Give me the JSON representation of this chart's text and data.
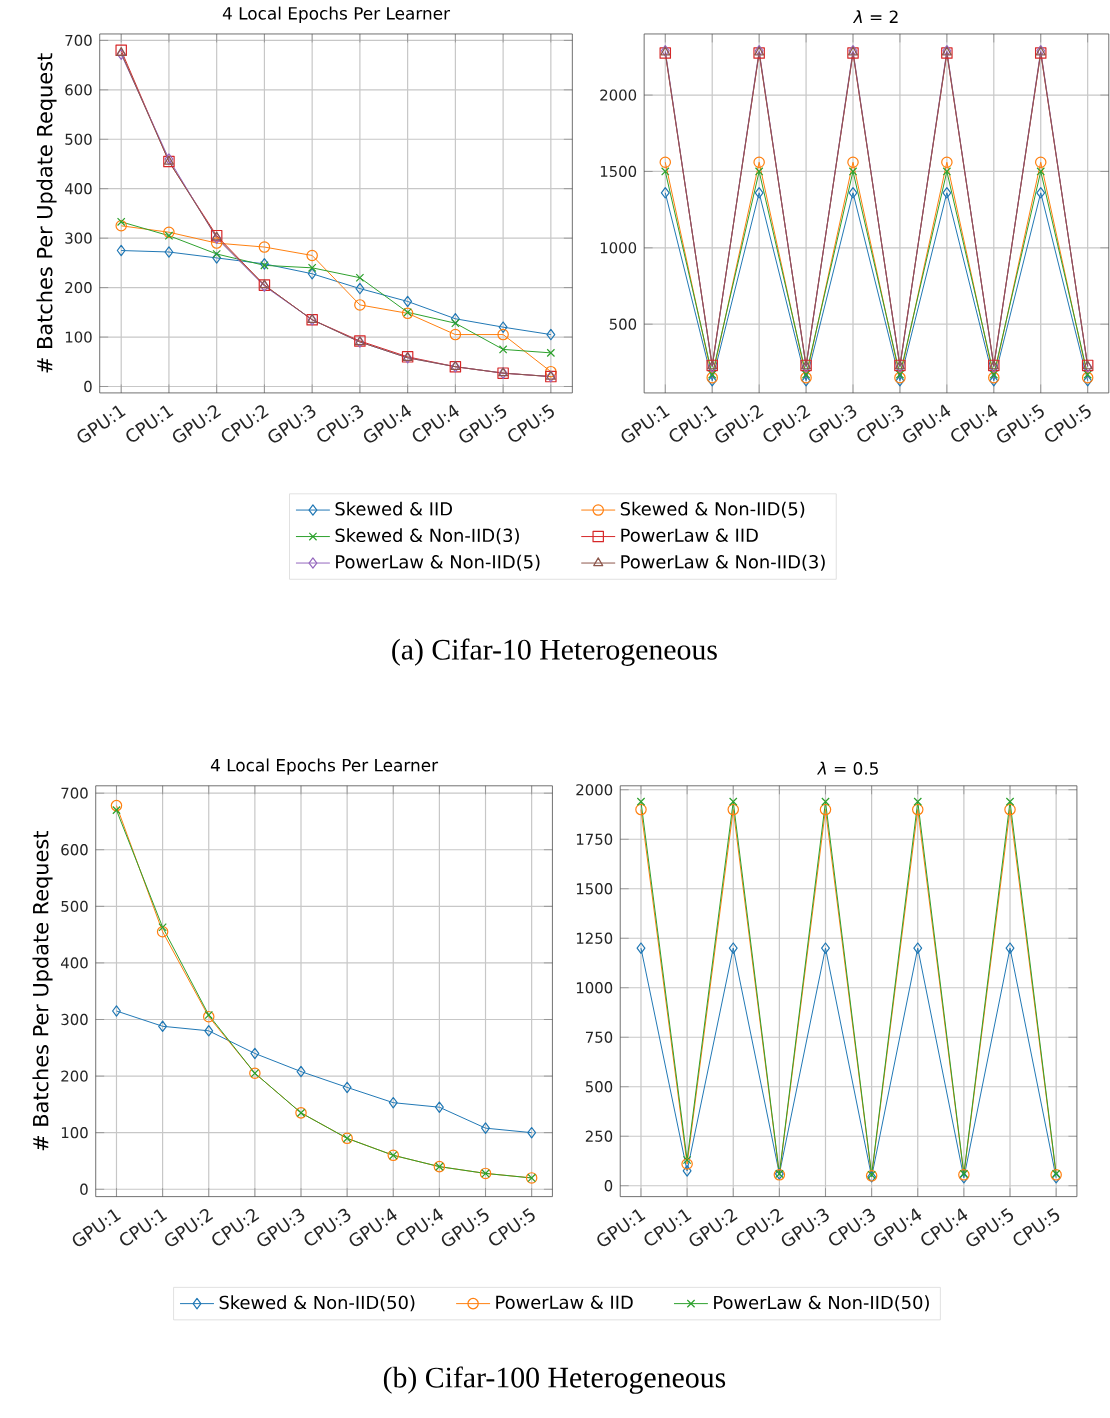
{
  "chart_data": [
    {
      "type": "line",
      "title": "4 Local Epochs Per Learner",
      "ylabel": "# Batches Per Update Request",
      "categories": [
        "GPU:1",
        "CPU:1",
        "GPU:2",
        "CPU:2",
        "GPU:3",
        "CPU:3",
        "GPU:4",
        "CPU:4",
        "GPU:5",
        "CPU:5"
      ],
      "ylim": [
        -13,
        713
      ],
      "yticks": [
        0,
        100,
        200,
        300,
        400,
        500,
        600,
        700
      ],
      "grid": true,
      "legend": "bottom",
      "annotations": [
        "(a) Cifar-10 Heterogeneous"
      ],
      "series": [
        {
          "name": "Skewed & IID",
          "color": "#1f77b4",
          "marker": "diamond",
          "values": [
            275,
            272,
            260,
            248,
            228,
            198,
            172,
            137,
            120,
            105
          ]
        },
        {
          "name": "Skewed & Non-IID(5)",
          "color": "#ff7f0e",
          "marker": "circle",
          "values": [
            325,
            312,
            290,
            282,
            265,
            165,
            148,
            105,
            105,
            30
          ]
        },
        {
          "name": "Skewed & Non-IID(3)",
          "color": "#2ca02c",
          "marker": "cross",
          "values": [
            333,
            305,
            268,
            245,
            240,
            220,
            150,
            128,
            75,
            68
          ]
        },
        {
          "name": "PowerLaw & IID",
          "color": "#d62728",
          "marker": "square",
          "values": [
            680,
            455,
            305,
            205,
            135,
            92,
            60,
            40,
            27,
            20
          ]
        },
        {
          "name": "PowerLaw & Non-IID(5)",
          "color": "#9467bd",
          "marker": "diamond",
          "values": [
            672,
            460,
            300,
            203,
            135,
            90,
            58,
            40,
            27,
            20
          ]
        },
        {
          "name": "PowerLaw & Non-IID(3)",
          "color": "#8c564b",
          "marker": "triangle",
          "values": [
            675,
            455,
            302,
            205,
            135,
            90,
            58,
            40,
            27,
            20
          ]
        }
      ]
    },
    {
      "type": "line",
      "title": "*λ* = 2",
      "categories": [
        "GPU:1",
        "CPU:1",
        "GPU:2",
        "CPU:2",
        "GPU:3",
        "CPU:3",
        "GPU:4",
        "CPU:4",
        "GPU:5",
        "CPU:5"
      ],
      "ylim": [
        50,
        2400
      ],
      "yticks": [
        500,
        1000,
        1500,
        2000
      ],
      "grid": true,
      "series": [
        {
          "color": "#1f77b4",
          "marker": "diamond",
          "values": [
            1360,
            130,
            1360,
            130,
            1360,
            130,
            1360,
            130,
            1360,
            130
          ]
        },
        {
          "color": "#ff7f0e",
          "marker": "circle",
          "values": [
            1560,
            150,
            1560,
            150,
            1560,
            150,
            1560,
            150,
            1560,
            150
          ]
        },
        {
          "color": "#2ca02c",
          "marker": "cross",
          "values": [
            1500,
            170,
            1500,
            170,
            1500,
            170,
            1500,
            170,
            1500,
            170
          ]
        },
        {
          "color": "#d62728",
          "marker": "square",
          "values": [
            2275,
            230,
            2275,
            230,
            2275,
            230,
            2275,
            230,
            2275,
            230
          ]
        },
        {
          "color": "#9467bd",
          "marker": "diamond",
          "values": [
            2290,
            220,
            2290,
            220,
            2290,
            220,
            2290,
            220,
            2290,
            220
          ]
        },
        {
          "color": "#8c564b",
          "marker": "triangle",
          "values": [
            2280,
            225,
            2280,
            225,
            2280,
            225,
            2280,
            225,
            2280,
            225
          ]
        }
      ]
    },
    {
      "type": "line",
      "title": "4 Local Epochs Per Learner",
      "ylabel": "# Batches Per Update Request",
      "categories": [
        "GPU:1",
        "CPU:1",
        "GPU:2",
        "CPU:2",
        "GPU:3",
        "CPU:3",
        "GPU:4",
        "CPU:4",
        "GPU:5",
        "CPU:5"
      ],
      "ylim": [
        -13,
        713
      ],
      "yticks": [
        0,
        100,
        200,
        300,
        400,
        500,
        600,
        700
      ],
      "grid": true,
      "legend": "bottom",
      "annotations": [
        "(b) Cifar-100 Heterogeneous"
      ],
      "series": [
        {
          "name": "Skewed & Non-IID(50)",
          "color": "#1f77b4",
          "marker": "diamond",
          "values": [
            315,
            288,
            280,
            240,
            208,
            180,
            153,
            145,
            108,
            100
          ]
        },
        {
          "name": "PowerLaw & IID",
          "color": "#ff7f0e",
          "marker": "circle",
          "values": [
            678,
            455,
            305,
            205,
            135,
            90,
            60,
            40,
            28,
            20
          ]
        },
        {
          "name": "PowerLaw & Non-IID(50)",
          "color": "#2ca02c",
          "marker": "cross",
          "values": [
            670,
            463,
            308,
            205,
            135,
            90,
            60,
            40,
            28,
            20
          ]
        }
      ]
    },
    {
      "type": "line",
      "title": "*λ* = 0.5",
      "categories": [
        "GPU:1",
        "CPU:1",
        "GPU:2",
        "CPU:2",
        "GPU:3",
        "CPU:3",
        "GPU:4",
        "CPU:4",
        "GPU:5",
        "CPU:5"
      ],
      "ylim": [
        -55,
        2020
      ],
      "yticks": [
        0,
        250,
        500,
        750,
        1000,
        1250,
        1500,
        1750,
        2000
      ],
      "grid": true,
      "series": [
        {
          "color": "#1f77b4",
          "marker": "diamond",
          "values": [
            1200,
            75,
            1200,
            60,
            1200,
            45,
            1200,
            40,
            1200,
            40
          ]
        },
        {
          "color": "#ff7f0e",
          "marker": "circle",
          "values": [
            1900,
            110,
            1900,
            55,
            1900,
            50,
            1900,
            55,
            1900,
            55
          ]
        },
        {
          "color": "#2ca02c",
          "marker": "cross",
          "values": [
            1940,
            130,
            1940,
            60,
            1940,
            55,
            1940,
            60,
            1940,
            60
          ]
        }
      ]
    }
  ]
}
